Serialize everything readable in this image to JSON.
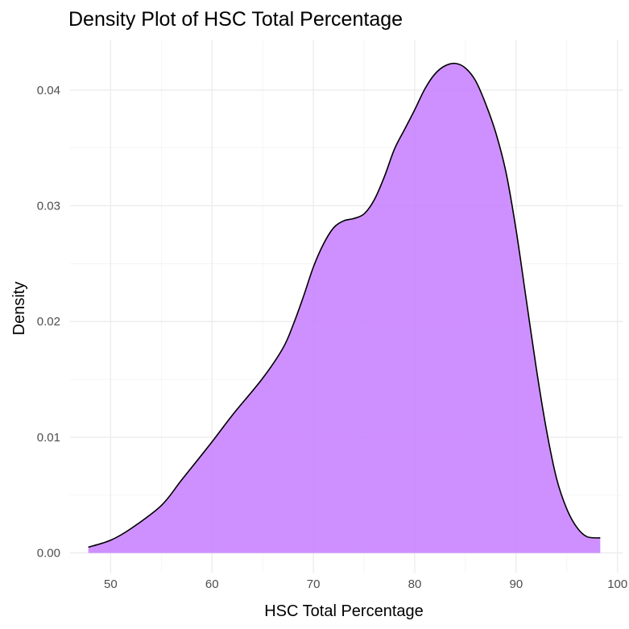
{
  "chart_data": {
    "type": "area",
    "title": "Density Plot of HSC Total Percentage",
    "xlabel": "HSC Total Percentage",
    "ylabel": "Density",
    "xlim": [
      46,
      100.5
    ],
    "ylim": [
      -0.0017,
      0.0443
    ],
    "x_ticks": [
      50,
      60,
      70,
      80,
      90,
      100
    ],
    "y_ticks": [
      0.0,
      0.01,
      0.02,
      0.03,
      0.04
    ],
    "x_tick_labels": [
      "50",
      "60",
      "70",
      "80",
      "90",
      "100"
    ],
    "y_tick_labels": [
      "0.00",
      "0.01",
      "0.02",
      "0.03",
      "0.04"
    ],
    "grid": true,
    "legend": "none",
    "fill_color": "#c77cff",
    "fill_opacity": 0.85,
    "line_color": "#000000",
    "series": [
      {
        "x": [
          47.8,
          50,
          52,
          55,
          57,
          60,
          62,
          65,
          67,
          68,
          69,
          70,
          71,
          72,
          73,
          74,
          75,
          76,
          77,
          78,
          79,
          80,
          81,
          82,
          83,
          84,
          85,
          86,
          87,
          88,
          89,
          90,
          91,
          92,
          93,
          94,
          95,
          96,
          97,
          98.3
        ],
        "y": [
          0.0005,
          0.0011,
          0.0021,
          0.0041,
          0.0063,
          0.0096,
          0.0119,
          0.0151,
          0.0177,
          0.0197,
          0.0221,
          0.0247,
          0.0267,
          0.0281,
          0.0287,
          0.0289,
          0.0293,
          0.0305,
          0.0325,
          0.0349,
          0.0366,
          0.0383,
          0.0401,
          0.0414,
          0.0421,
          0.0423,
          0.0419,
          0.0408,
          0.0388,
          0.0363,
          0.0329,
          0.0279,
          0.0219,
          0.0159,
          0.0106,
          0.0064,
          0.0038,
          0.0022,
          0.0014,
          0.0013
        ]
      }
    ]
  }
}
